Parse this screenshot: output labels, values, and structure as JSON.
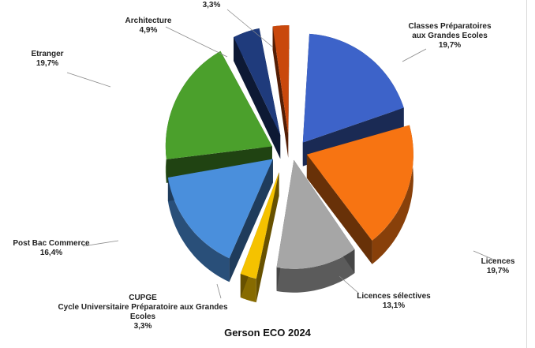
{
  "chart_data": {
    "type": "pie",
    "style": "3d-exploded",
    "title": "Gerson ECO 2024",
    "slices": [
      {
        "label_lines": [
          "Classes Préparatoires",
          "aux Grandes Ecoles"
        ],
        "value_label": "19,7%",
        "value": 19.7,
        "color": "#3d63c9"
      },
      {
        "label_lines": [
          "Licences"
        ],
        "value_label": "19,7%",
        "value": 19.7,
        "color": "#f77412"
      },
      {
        "label_lines": [
          "Licences sélectives"
        ],
        "value_label": "13,1%",
        "value": 13.1,
        "color": "#a6a6a6"
      },
      {
        "label_lines": [
          "CUPGE",
          "Cycle Universitaire Préparatoire aux Grandes",
          "Ecoles"
        ],
        "value_label": "3,3%",
        "value": 3.3,
        "color": "#f5c200"
      },
      {
        "label_lines": [
          "Post Bac Commerce"
        ],
        "value_label": "16,4%",
        "value": 16.4,
        "color": "#4a8fdc"
      },
      {
        "label_lines": [
          "Etranger"
        ],
        "value_label": "19,7%",
        "value": 19.7,
        "color": "#4ba02c"
      },
      {
        "label_lines": [
          "Architecture"
        ],
        "value_label": "4,9%",
        "value": 4.9,
        "color": "#1f3b7c"
      },
      {
        "label_lines": [],
        "value_label": "3,3%",
        "value": 3.3,
        "color": "#c9480c"
      }
    ]
  }
}
